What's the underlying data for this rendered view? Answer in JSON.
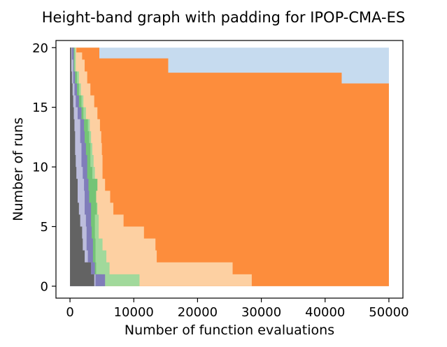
{
  "chart_data": {
    "type": "area",
    "title": "Height-band graph with padding for IPOP-CMA-ES",
    "xlabel": "Number of function evaluations",
    "ylabel": "Number of runs",
    "xlim": [
      -2200,
      52200
    ],
    "ylim": [
      -1,
      20.6
    ],
    "xticks": [
      0,
      10000,
      20000,
      30000,
      40000,
      50000
    ],
    "xtick_labels": [
      "0",
      "10000",
      "20000",
      "30000",
      "40000",
      "50000"
    ],
    "yticks": [
      0,
      5,
      10,
      15,
      20
    ],
    "ytick_labels": [
      "0",
      "5",
      "10",
      "15",
      "20"
    ],
    "grid": false,
    "legend": "none",
    "series": [
      {
        "color": "#c6dbef",
        "steps": [
          [
            0,
            0
          ],
          [
            50000,
            0
          ],
          [
            50000,
            20
          ],
          [
            0,
            20
          ]
        ]
      },
      {
        "color": "#fd8d3c",
        "steps": [
          [
            0,
            0
          ],
          [
            50000,
            0
          ],
          [
            50000,
            17
          ],
          [
            42600,
            17
          ],
          [
            42600,
            17.9
          ],
          [
            15400,
            17.9
          ],
          [
            15400,
            19.1
          ],
          [
            4600,
            19.1
          ],
          [
            4600,
            20
          ],
          [
            0,
            20
          ]
        ]
      },
      {
        "color": "#fdd0a2",
        "steps": [
          [
            0,
            0
          ],
          [
            28500,
            0
          ],
          [
            28500,
            1
          ],
          [
            25500,
            1
          ],
          [
            25500,
            2
          ],
          [
            13600,
            2
          ],
          [
            13600,
            3
          ],
          [
            13400,
            3
          ],
          [
            13400,
            4
          ],
          [
            11600,
            4
          ],
          [
            11600,
            5
          ],
          [
            8400,
            5
          ],
          [
            8400,
            6
          ],
          [
            6800,
            6
          ],
          [
            6800,
            7
          ],
          [
            6300,
            7
          ],
          [
            6300,
            8
          ],
          [
            5500,
            8
          ],
          [
            5500,
            9
          ],
          [
            5100,
            9
          ],
          [
            5100,
            11
          ],
          [
            5000,
            11
          ],
          [
            5000,
            12
          ],
          [
            4900,
            12
          ],
          [
            4900,
            13
          ],
          [
            4700,
            13
          ],
          [
            4700,
            14
          ],
          [
            4300,
            14
          ],
          [
            4300,
            15
          ],
          [
            3800,
            15
          ],
          [
            3800,
            16
          ],
          [
            3200,
            16
          ],
          [
            3200,
            17
          ],
          [
            2700,
            17
          ],
          [
            2700,
            18
          ],
          [
            2300,
            18
          ],
          [
            2300,
            19
          ],
          [
            1900,
            19
          ],
          [
            1900,
            19.6
          ],
          [
            1000,
            19.6
          ],
          [
            1000,
            20
          ],
          [
            0,
            20
          ]
        ]
      },
      {
        "color": "#a1d99b",
        "steps": [
          [
            0,
            0
          ],
          [
            10900,
            0
          ],
          [
            10900,
            1
          ],
          [
            6200,
            1
          ],
          [
            6200,
            2
          ],
          [
            5700,
            2
          ],
          [
            5700,
            3
          ],
          [
            5100,
            3
          ],
          [
            5100,
            4
          ],
          [
            4500,
            4
          ],
          [
            4500,
            6
          ],
          [
            4300,
            6
          ],
          [
            4300,
            7
          ],
          [
            4100,
            7
          ],
          [
            4100,
            8
          ],
          [
            3900,
            8
          ],
          [
            3900,
            10
          ],
          [
            3700,
            10
          ],
          [
            3700,
            11
          ],
          [
            3500,
            11
          ],
          [
            3500,
            12
          ],
          [
            3300,
            12
          ],
          [
            3300,
            13
          ],
          [
            3100,
            13
          ],
          [
            3100,
            14
          ],
          [
            2500,
            14
          ],
          [
            2500,
            15
          ],
          [
            2100,
            15
          ],
          [
            2100,
            16
          ],
          [
            1700,
            16
          ],
          [
            1700,
            17
          ],
          [
            1400,
            17
          ],
          [
            1400,
            18
          ],
          [
            900,
            18
          ],
          [
            900,
            20
          ],
          [
            0,
            20
          ]
        ]
      },
      {
        "color": "#74c476",
        "steps": [
          [
            0,
            0
          ],
          [
            5000,
            0
          ],
          [
            5000,
            1
          ],
          [
            4100,
            1
          ],
          [
            4100,
            2
          ],
          [
            4000,
            2
          ],
          [
            4000,
            4
          ],
          [
            3900,
            4
          ],
          [
            3900,
            6
          ],
          [
            4200,
            6
          ],
          [
            4200,
            7
          ],
          [
            4100,
            7
          ],
          [
            4100,
            8
          ],
          [
            4300,
            8
          ],
          [
            4300,
            9
          ],
          [
            3500,
            9
          ],
          [
            3500,
            10
          ],
          [
            3200,
            10
          ],
          [
            3200,
            12
          ],
          [
            3000,
            12
          ],
          [
            3000,
            13
          ],
          [
            2800,
            13
          ],
          [
            2800,
            14
          ],
          [
            2100,
            14
          ],
          [
            2100,
            15
          ],
          [
            1800,
            15
          ],
          [
            1800,
            16
          ],
          [
            1400,
            16
          ],
          [
            1400,
            17
          ],
          [
            1100,
            17
          ],
          [
            1100,
            18
          ],
          [
            700,
            18
          ],
          [
            700,
            20
          ],
          [
            0,
            20
          ]
        ]
      },
      {
        "color": "#807dba",
        "steps": [
          [
            0,
            0
          ],
          [
            5500,
            0
          ],
          [
            5500,
            1
          ],
          [
            3900,
            1
          ],
          [
            3900,
            2
          ],
          [
            3600,
            2
          ],
          [
            3600,
            4
          ],
          [
            3400,
            4
          ],
          [
            3400,
            5
          ],
          [
            3300,
            5
          ],
          [
            3300,
            7
          ],
          [
            3000,
            7
          ],
          [
            3000,
            8
          ],
          [
            2900,
            8
          ],
          [
            2900,
            9
          ],
          [
            2700,
            9
          ],
          [
            2700,
            11
          ],
          [
            2500,
            11
          ],
          [
            2500,
            12
          ],
          [
            2300,
            12
          ],
          [
            2300,
            13
          ],
          [
            2200,
            13
          ],
          [
            2200,
            14
          ],
          [
            1800,
            14
          ],
          [
            1800,
            15
          ],
          [
            1400,
            15
          ],
          [
            1400,
            16
          ],
          [
            1100,
            16
          ],
          [
            1100,
            17
          ],
          [
            800,
            17
          ],
          [
            800,
            18
          ],
          [
            600,
            18
          ],
          [
            600,
            20
          ],
          [
            0,
            20
          ]
        ]
      },
      {
        "color": "#bcbddc",
        "steps": [
          [
            0,
            0
          ],
          [
            4000,
            0
          ],
          [
            4000,
            1
          ],
          [
            3300,
            1
          ],
          [
            3300,
            2
          ],
          [
            2800,
            2
          ],
          [
            2800,
            3
          ],
          [
            2600,
            3
          ],
          [
            2600,
            5
          ],
          [
            2500,
            5
          ],
          [
            2500,
            6
          ],
          [
            2300,
            6
          ],
          [
            2300,
            8
          ],
          [
            2200,
            8
          ],
          [
            2200,
            9
          ],
          [
            2000,
            9
          ],
          [
            2000,
            10
          ],
          [
            1800,
            10
          ],
          [
            1800,
            12
          ],
          [
            1600,
            12
          ],
          [
            1600,
            14
          ],
          [
            1200,
            14
          ],
          [
            1200,
            15
          ],
          [
            900,
            15
          ],
          [
            900,
            16
          ],
          [
            700,
            16
          ],
          [
            700,
            17
          ],
          [
            500,
            17
          ],
          [
            500,
            19
          ],
          [
            300,
            19
          ],
          [
            300,
            20
          ],
          [
            0,
            20
          ]
        ]
      },
      {
        "color": "#636363",
        "steps": [
          [
            0,
            0
          ],
          [
            3800,
            0
          ],
          [
            3800,
            1
          ],
          [
            3300,
            1
          ],
          [
            3300,
            2
          ],
          [
            2300,
            2
          ],
          [
            2300,
            3
          ],
          [
            2000,
            3
          ],
          [
            2000,
            4
          ],
          [
            1900,
            4
          ],
          [
            1900,
            5
          ],
          [
            1600,
            5
          ],
          [
            1600,
            6
          ],
          [
            1400,
            6
          ],
          [
            1400,
            7
          ],
          [
            1200,
            7
          ],
          [
            1200,
            9
          ],
          [
            1000,
            9
          ],
          [
            1000,
            10
          ],
          [
            900,
            10
          ],
          [
            900,
            11
          ],
          [
            800,
            11
          ],
          [
            800,
            13
          ],
          [
            700,
            13
          ],
          [
            700,
            14
          ],
          [
            600,
            14
          ],
          [
            600,
            15
          ],
          [
            500,
            15
          ],
          [
            500,
            16
          ],
          [
            400,
            16
          ],
          [
            400,
            17
          ],
          [
            300,
            17
          ],
          [
            300,
            18
          ],
          [
            200,
            18
          ],
          [
            200,
            20
          ],
          [
            0,
            20
          ]
        ]
      }
    ]
  }
}
